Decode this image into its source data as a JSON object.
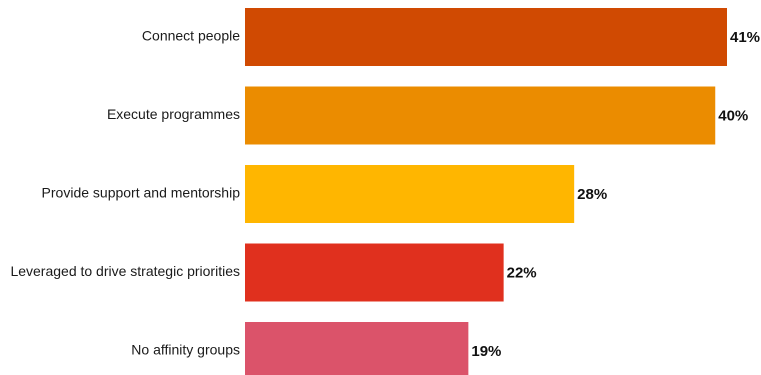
{
  "chart_data": {
    "type": "bar",
    "orientation": "horizontal",
    "categories": [
      "Connect people",
      "Execute programmes",
      "Provide support and mentorship",
      "Leveraged to drive strategic priorities",
      "No affinity groups"
    ],
    "values": [
      41,
      40,
      28,
      22,
      19
    ],
    "value_labels": [
      "41%",
      "40%",
      "28%",
      "22%",
      "19%"
    ],
    "colors": [
      "#D04A02",
      "#EB8C00",
      "#FFB600",
      "#E0301E",
      "#DB536A"
    ],
    "xlim": [
      0,
      41
    ],
    "grid": false,
    "legend": "none"
  }
}
